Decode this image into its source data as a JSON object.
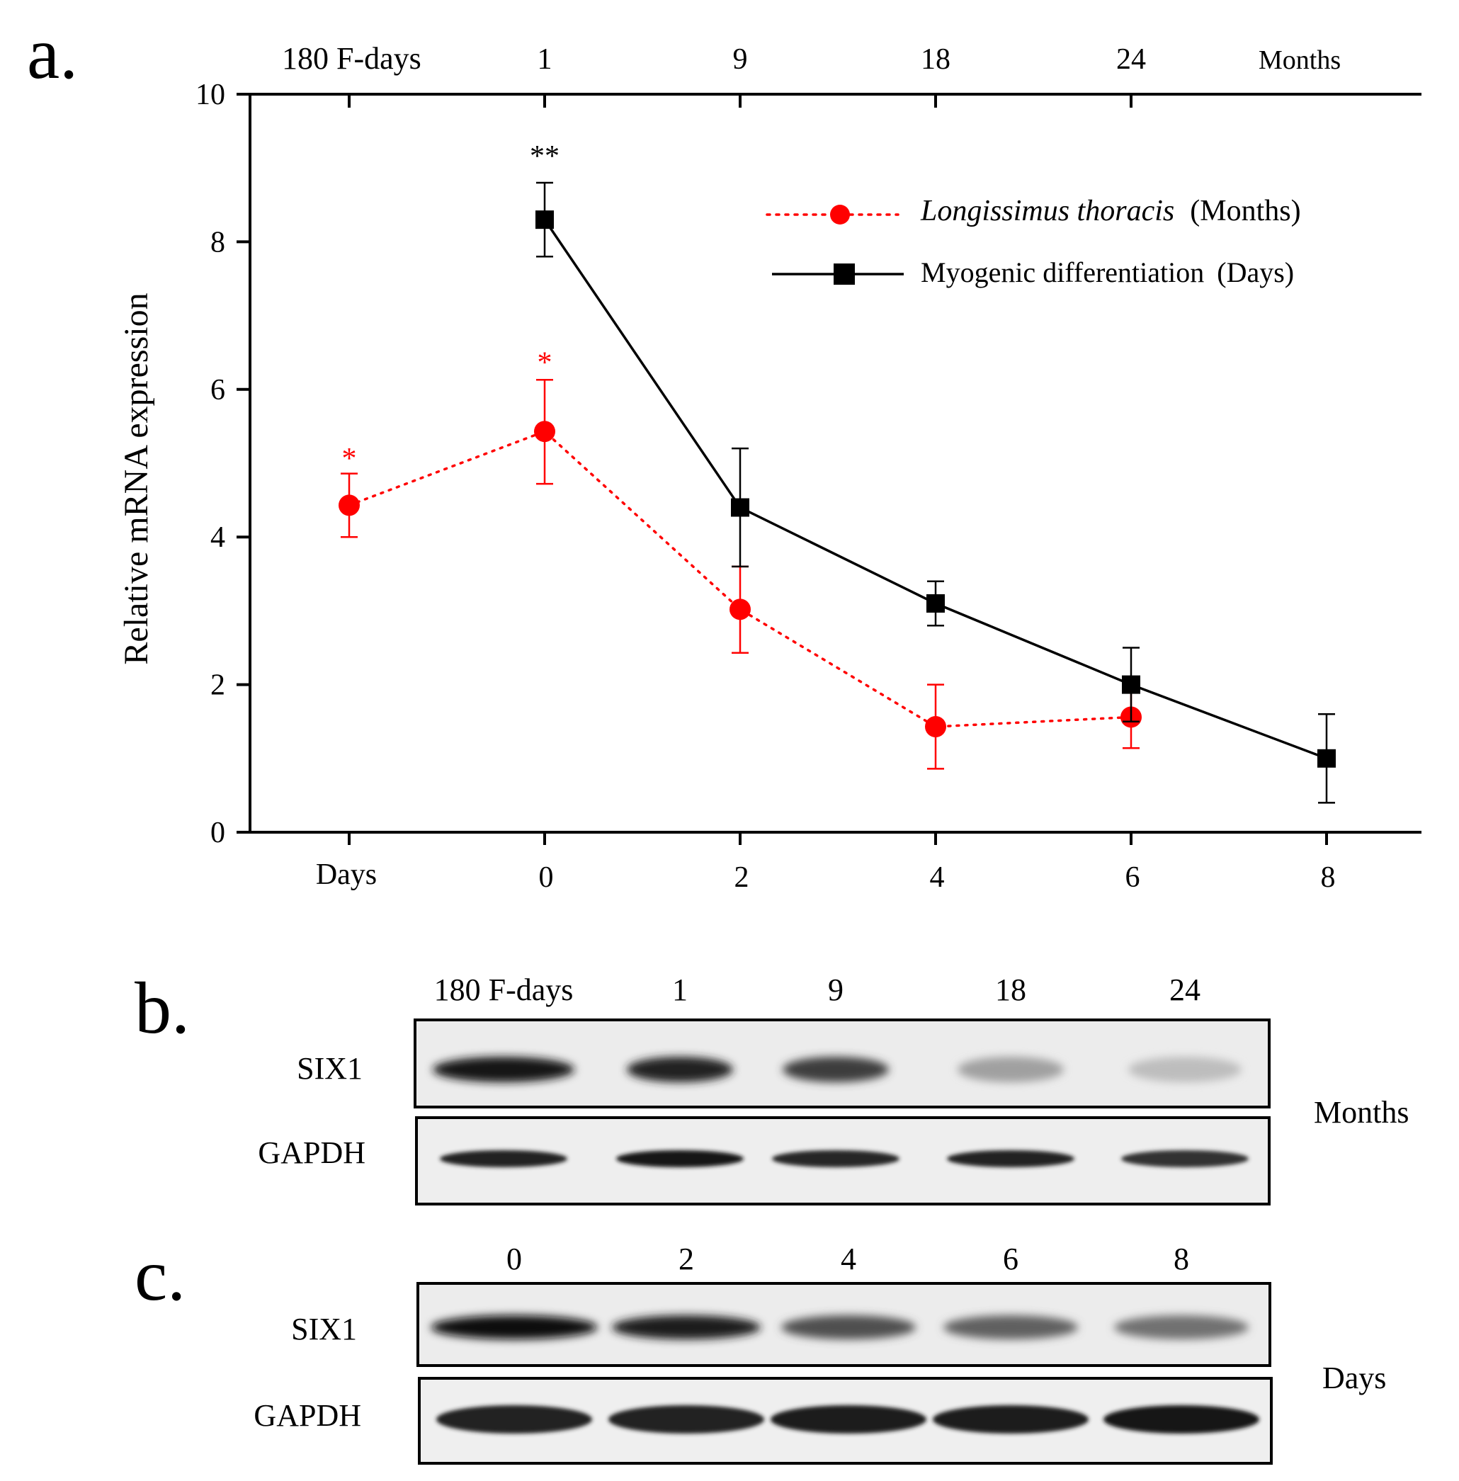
{
  "panel_labels": {
    "a": "a.",
    "b": "b.",
    "c": "c."
  },
  "colors": {
    "red": "#ff0000",
    "black": "#000000",
    "blot_bg": "#e9e9e9"
  },
  "chart_data": {
    "type": "line",
    "ylabel": "Relative mRNA expression",
    "ylim": [
      0,
      10
    ],
    "yticks": [
      0,
      2,
      4,
      6,
      8,
      10
    ],
    "bottom_axis": {
      "name": "Days",
      "categories": [
        "Days",
        "0",
        "2",
        "4",
        "6",
        "8"
      ]
    },
    "top_axis": {
      "name": "Months",
      "categories": [
        "180 F-days",
        "1",
        "9",
        "18",
        "24",
        "Months"
      ]
    },
    "series": [
      {
        "name": "Longissimus thoracis",
        "name_suffix": "(Months)",
        "color": "#ff0000",
        "line_style": "dotted",
        "marker": "circle",
        "x_index": [
          0,
          1,
          2,
          3,
          4
        ],
        "values": [
          4.43,
          5.43,
          3.02,
          1.43,
          1.56
        ],
        "err_low": [
          4.0,
          4.72,
          2.43,
          0.86,
          1.14
        ],
        "err_high": [
          4.86,
          6.13,
          3.6,
          2.0,
          1.98
        ],
        "annotations": [
          {
            "x_index": 0,
            "text": "*",
            "y": 5.2
          },
          {
            "x_index": 1,
            "text": "*",
            "y": 6.5
          }
        ]
      },
      {
        "name": "Myogenic differentiation",
        "name_suffix": "(Days)",
        "color": "#000000",
        "line_style": "solid",
        "marker": "square",
        "x_index": [
          1,
          2,
          3,
          4,
          5
        ],
        "values": [
          8.3,
          4.4,
          3.1,
          2.0,
          1.0
        ],
        "err_low": [
          7.8,
          3.6,
          2.8,
          1.5,
          0.4
        ],
        "err_high": [
          8.8,
          5.2,
          3.4,
          2.5,
          1.6
        ],
        "annotations": [
          {
            "x_index": 1,
            "text": "**",
            "y": 9.3
          }
        ]
      }
    ],
    "legend_position": "top-right"
  },
  "western_b": {
    "lanes": [
      "180 F-days",
      "1",
      "9",
      "18",
      "24"
    ],
    "rows": [
      "SIX1",
      "GAPDH"
    ],
    "side_label": "Months",
    "six1_intensity": [
      0.95,
      0.9,
      0.78,
      0.35,
      0.22
    ],
    "gapdh_intensity": [
      0.9,
      0.95,
      0.88,
      0.9,
      0.82
    ]
  },
  "western_c": {
    "lanes": [
      "0",
      "2",
      "4",
      "6",
      "8"
    ],
    "rows": [
      "SIX1",
      "GAPDH"
    ],
    "side_label": "Days",
    "six1_intensity": [
      1.0,
      0.92,
      0.7,
      0.62,
      0.55
    ],
    "gapdh_intensity": [
      0.9,
      0.9,
      0.92,
      0.92,
      0.94
    ]
  }
}
